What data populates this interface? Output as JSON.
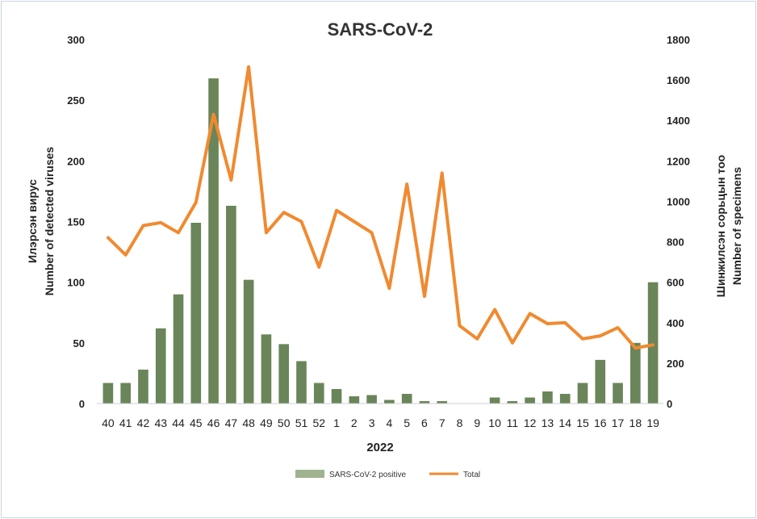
{
  "chart_data": {
    "type": "bar",
    "title": "SARS-CoV-2",
    "xlabel": "2022",
    "ylabel_left": [
      "Илэрсэн вирус",
      "Number of detected viruses"
    ],
    "ylabel_right": [
      "Шинжилсэн сорьцын тоо",
      "Number of specimens"
    ],
    "categories": [
      "40",
      "41",
      "42",
      "43",
      "44",
      "45",
      "46",
      "47",
      "48",
      "49",
      "50",
      "51",
      "52",
      "1",
      "2",
      "3",
      "4",
      "5",
      "6",
      "7",
      "8",
      "9",
      "10",
      "11",
      "12",
      "13",
      "14",
      "15",
      "16",
      "17",
      "18",
      "19"
    ],
    "ylim_left": [
      0,
      300
    ],
    "yticks_left": [
      0,
      50,
      100,
      150,
      200,
      250,
      300
    ],
    "ylim_right": [
      0,
      1800
    ],
    "yticks_right": [
      0,
      200,
      400,
      600,
      800,
      1000,
      1200,
      1400,
      1600,
      1800
    ],
    "grid": false,
    "legend_position": "bottom",
    "series": [
      {
        "name": "SARS-CoV-2 positive",
        "type": "bar",
        "axis": "left",
        "color": "#6a8559",
        "values": [
          17,
          17,
          28,
          62,
          90,
          149,
          268,
          163,
          102,
          57,
          49,
          35,
          17,
          12,
          6,
          7,
          3,
          8,
          2,
          2,
          0,
          0,
          5,
          2,
          5,
          10,
          8,
          17,
          36,
          17,
          50,
          100
        ]
      },
      {
        "name": "Total",
        "type": "line",
        "axis": "right",
        "color": "#f08a30",
        "values": [
          820,
          735,
          880,
          895,
          845,
          995,
          1430,
          1105,
          1665,
          845,
          945,
          900,
          675,
          955,
          900,
          845,
          570,
          1085,
          530,
          1140,
          385,
          320,
          465,
          300,
          445,
          395,
          400,
          320,
          335,
          375,
          275,
          290
        ]
      }
    ]
  }
}
